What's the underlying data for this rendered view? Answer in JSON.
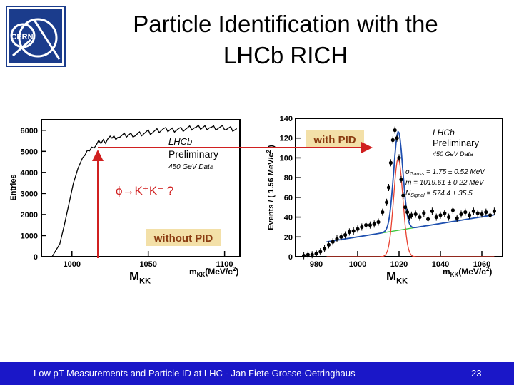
{
  "logo": {
    "text": "CERN"
  },
  "title": {
    "line1": "Particle Identification with the",
    "line2": "LHCb RICH"
  },
  "chart_data": [
    {
      "type": "line",
      "ylabel": "Entries",
      "yticks": [
        0,
        1000,
        2000,
        3000,
        4000,
        5000,
        6000
      ],
      "ylim": [
        0,
        6500
      ],
      "xticks": [
        1000,
        1050,
        1100
      ],
      "xlim": [
        980,
        1110
      ],
      "xlabel": "m",
      "xlabel_sub": "KK",
      "xlabel_unit": "(MeV/c",
      "xlabel_sup": "2",
      "xlabel_close": ")",
      "legend": {
        "l1": "LHCb",
        "l2": "Preliminary",
        "l3": "450 GeV Data"
      },
      "annotation": "ϕ→K⁺K⁻ ?",
      "tag": "without PID",
      "x": [
        987,
        992,
        995,
        998,
        1001,
        1004,
        1007,
        1010,
        1013,
        1016,
        1019,
        1022,
        1025,
        1030,
        1040,
        1050,
        1060,
        1070,
        1080,
        1090,
        1100,
        1108
      ],
      "y": [
        0,
        600,
        1500,
        2500,
        3500,
        4200,
        4700,
        5000,
        5200,
        5350,
        5450,
        5500,
        5600,
        5700,
        5800,
        5900,
        6000,
        6050,
        6100,
        6150,
        6100,
        6000
      ]
    },
    {
      "type": "scatter",
      "ylabel": "Events / ( 1.56 MeV/c",
      "ylabel_sup": "2",
      "ylabel_close": " )",
      "yticks": [
        0,
        20,
        40,
        60,
        80,
        100,
        120,
        140
      ],
      "ylim": [
        0,
        140
      ],
      "xticks": [
        980,
        1000,
        1020,
        1040,
        1060
      ],
      "xlim": [
        970,
        1070
      ],
      "xlabel": "m",
      "xlabel_sub": "KK",
      "xlabel_unit": "(MeV/c",
      "xlabel_sup": "2",
      "xlabel_close": ")",
      "legend": {
        "l1": "LHCb",
        "l2": "Preliminary",
        "l3": "450 GeV Data"
      },
      "fit_results": [
        "σ",
        "Gauss",
        " = 1.75 ± 0.52 MeV",
        "m = 1019.61 ± 0.22 MeV",
        "N",
        "Signal",
        " = 574.4 ± 35.5"
      ],
      "tag": "with PID",
      "data_x": [
        974,
        976,
        978,
        980,
        982,
        984,
        986,
        988,
        990,
        992,
        994,
        996,
        998,
        1000,
        1002,
        1004,
        1006,
        1008,
        1010,
        1012,
        1014,
        1015,
        1016,
        1017,
        1018,
        1019,
        1020,
        1021,
        1022,
        1023,
        1024,
        1025,
        1026,
        1028,
        1030,
        1032,
        1034,
        1036,
        1038,
        1040,
        1042,
        1044,
        1046,
        1048,
        1050,
        1052,
        1054,
        1056,
        1058,
        1060,
        1062,
        1064,
        1066
      ],
      "data_y": [
        1,
        2,
        2,
        3,
        5,
        8,
        12,
        15,
        18,
        20,
        22,
        25,
        26,
        28,
        30,
        32,
        32,
        33,
        35,
        45,
        55,
        70,
        95,
        118,
        128,
        120,
        100,
        78,
        62,
        50,
        45,
        40,
        42,
        43,
        40,
        44,
        38,
        46,
        40,
        42,
        44,
        40,
        47,
        39,
        43,
        45,
        42,
        46,
        44,
        43,
        45,
        42,
        46
      ],
      "background_line": {
        "x": [
          985,
          1065
        ],
        "y": [
          15,
          42
        ]
      },
      "peak": {
        "mean": 1019.61,
        "amplitude": 100
      }
    }
  ],
  "labels": {
    "left": "M",
    "left_sub": "KK",
    "right": "M",
    "right_sub": "KK"
  },
  "footer": {
    "text": "Low pT Measurements and Particle ID at LHC - Jan Fiete Grosse-Oetringhaus",
    "page": "23"
  },
  "colors": {
    "footer_bg": "#1a17c8",
    "arrow": "#d02020",
    "tag_bg": "#f3e0a8",
    "tag_text": "#8a3b10",
    "fit_blue": "#1f4fb0",
    "bg_green": "#3cc83c",
    "peak_red": "#e84030"
  }
}
